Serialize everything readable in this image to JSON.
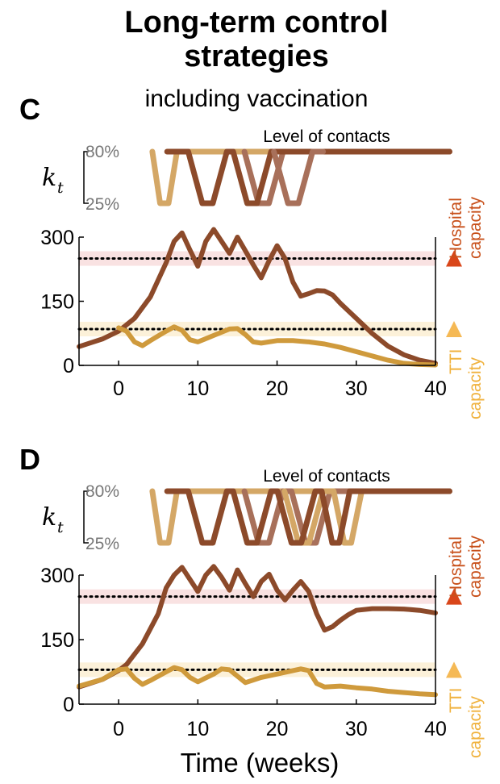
{
  "figure": {
    "title_line1": "Long-term control",
    "title_line2": "strategies",
    "subtitle": "including vaccination",
    "xlabel": "Time (weeks)"
  },
  "colors": {
    "dark": "#8c4a2a",
    "mid": "#a8705a",
    "light": "#d4a766",
    "orange": "#cf9a3c",
    "hospital": "#d9461a",
    "tti": "#f5b955",
    "hospital_band": "#f7d6d6",
    "tti_band": "#fbedd0"
  },
  "chart_data": [
    {
      "type": "line",
      "panel": "C",
      "contacts_title": "Level of contacts",
      "kt_label": "k",
      "kt_sub": "t",
      "kt_ticks": [
        "80%",
        "25%"
      ],
      "kt_range": [
        0.25,
        0.8
      ],
      "kt_series": [
        {
          "name": "light",
          "color": "light",
          "points": [
            [
              -0.3,
              0.8
            ],
            [
              0.8,
              0.25
            ],
            [
              2.0,
              0.25
            ],
            [
              3.2,
              0.8
            ],
            [
              42,
              0.8
            ]
          ]
        },
        {
          "name": "mid",
          "color": "mid",
          "points": [
            [
              12.8,
              0.8
            ],
            [
              14.8,
              0.25
            ],
            [
              16.3,
              0.25
            ],
            [
              18.3,
              0.8
            ],
            [
              42,
              0.8
            ]
          ]
        },
        {
          "name": "dark",
          "color": "dark",
          "points": [
            [
              1.8,
              0.8
            ],
            [
              4.8,
              0.8
            ],
            [
              6.8,
              0.25
            ],
            [
              8.3,
              0.25
            ],
            [
              10.3,
              0.8
            ],
            [
              11.2,
              0.8
            ],
            [
              13.2,
              0.25
            ],
            [
              14.6,
              0.25
            ],
            [
              16.6,
              0.8
            ],
            [
              42,
              0.8
            ]
          ]
        },
        {
          "name": "mid2",
          "color": "mid",
          "points": [
            [
              17.0,
              0.8
            ],
            [
              19.0,
              0.25
            ],
            [
              20.5,
              0.25
            ],
            [
              22.5,
              0.8
            ],
            [
              24,
              0.8
            ]
          ]
        }
      ],
      "xlim": [
        -5,
        40
      ],
      "ylim": [
        0,
        300
      ],
      "x_ticks": [
        "0",
        "10",
        "20",
        "30",
        "40"
      ],
      "y_ticks": [
        "0",
        "150",
        "300"
      ],
      "hospital_capacity": 250,
      "tti_capacity": 85,
      "hospital_label": [
        "Hospital",
        "capacity"
      ],
      "tti_label": [
        "TTI",
        "capacity"
      ],
      "series": [
        {
          "name": "hospital",
          "color": "dark",
          "points": [
            [
              -5,
              44
            ],
            [
              -2,
              62
            ],
            [
              0,
              80
            ],
            [
              2,
              110
            ],
            [
              4,
              160
            ],
            [
              6,
              240
            ],
            [
              7,
              290
            ],
            [
              8,
              310
            ],
            [
              9,
              270
            ],
            [
              10,
              232
            ],
            [
              11,
              290
            ],
            [
              12,
              318
            ],
            [
              13,
              290
            ],
            [
              14,
              262
            ],
            [
              15,
              300
            ],
            [
              16,
              268
            ],
            [
              17,
              235
            ],
            [
              18,
              205
            ],
            [
              19,
              245
            ],
            [
              20,
              280
            ],
            [
              21,
              250
            ],
            [
              22,
              195
            ],
            [
              23,
              162
            ],
            [
              24,
              168
            ],
            [
              25,
              175
            ],
            [
              26,
              174
            ],
            [
              27,
              165
            ],
            [
              28,
              145
            ],
            [
              30,
              110
            ],
            [
              32,
              75
            ],
            [
              34,
              45
            ],
            [
              36,
              25
            ],
            [
              38,
              12
            ],
            [
              40,
              5
            ]
          ]
        },
        {
          "name": "tti",
          "color": "orange",
          "points": [
            [
              0,
              88
            ],
            [
              1,
              80
            ],
            [
              2,
              55
            ],
            [
              3,
              46
            ],
            [
              4,
              58
            ],
            [
              6,
              80
            ],
            [
              7,
              90
            ],
            [
              8,
              82
            ],
            [
              9,
              60
            ],
            [
              10,
              55
            ],
            [
              12,
              70
            ],
            [
              14,
              85
            ],
            [
              15,
              86
            ],
            [
              16,
              72
            ],
            [
              17,
              55
            ],
            [
              18,
              52
            ],
            [
              20,
              58
            ],
            [
              22,
              58
            ],
            [
              24,
              55
            ],
            [
              26,
              50
            ],
            [
              28,
              42
            ],
            [
              30,
              32
            ],
            [
              32,
              22
            ],
            [
              34,
              12
            ],
            [
              36,
              5
            ],
            [
              38,
              2
            ],
            [
              40,
              1
            ]
          ]
        }
      ]
    },
    {
      "type": "line",
      "panel": "D",
      "contacts_title": "Level of contacts",
      "kt_label": "k",
      "kt_sub": "t",
      "kt_ticks": [
        "80%",
        "25%"
      ],
      "kt_range": [
        0.25,
        0.8
      ],
      "kt_series": [
        {
          "name": "light",
          "color": "light",
          "points": [
            [
              -0.3,
              0.8
            ],
            [
              0.8,
              0.25
            ],
            [
              2.0,
              0.25
            ],
            [
              3.2,
              0.8
            ],
            [
              42,
              0.8
            ]
          ]
        },
        {
          "name": "mid",
          "color": "mid",
          "points": [
            [
              12.8,
              0.8
            ],
            [
              14.8,
              0.25
            ],
            [
              16.3,
              0.25
            ],
            [
              18.3,
              0.8
            ],
            [
              19.5,
              0.8
            ],
            [
              21.5,
              0.25
            ],
            [
              23.0,
              0.25
            ],
            [
              25.0,
              0.8
            ],
            [
              42,
              0.8
            ]
          ]
        },
        {
          "name": "light2",
          "color": "light",
          "points": [
            [
              18.5,
              0.8
            ],
            [
              20.5,
              0.25
            ],
            [
              22.0,
              0.25
            ],
            [
              24.0,
              0.8
            ],
            [
              25.5,
              0.8
            ],
            [
              27.0,
              0.25
            ],
            [
              28.0,
              0.25
            ],
            [
              29.5,
              0.8
            ]
          ]
        },
        {
          "name": "dark",
          "color": "dark",
          "points": [
            [
              1.8,
              0.8
            ],
            [
              4.8,
              0.8
            ],
            [
              6.8,
              0.25
            ],
            [
              8.3,
              0.25
            ],
            [
              10.3,
              0.8
            ],
            [
              11.2,
              0.8
            ],
            [
              13.2,
              0.25
            ],
            [
              14.6,
              0.25
            ],
            [
              16.6,
              0.8
            ],
            [
              17.5,
              0.8
            ],
            [
              19.5,
              0.25
            ],
            [
              20.9,
              0.25
            ],
            [
              22.9,
              0.8
            ],
            [
              23.8,
              0.8
            ],
            [
              25.3,
              0.25
            ],
            [
              26.3,
              0.25
            ],
            [
              27.8,
              0.8
            ],
            [
              42,
              0.8
            ]
          ]
        }
      ],
      "xlim": [
        -5,
        40
      ],
      "ylim": [
        0,
        300
      ],
      "x_ticks": [
        "0",
        "10",
        "20",
        "30",
        "40"
      ],
      "y_ticks": [
        "0",
        "150",
        "300"
      ],
      "hospital_capacity": 250,
      "tti_capacity": 80,
      "hospital_label": [
        "Hospital",
        "capacity"
      ],
      "tti_label": [
        "TTI",
        "capacity"
      ],
      "series": [
        {
          "name": "hospital",
          "color": "dark",
          "points": [
            [
              -5,
              40
            ],
            [
              -2,
              58
            ],
            [
              0,
              78
            ],
            [
              1,
              92
            ],
            [
              3,
              140
            ],
            [
              5,
              210
            ],
            [
              6,
              270
            ],
            [
              7,
              300
            ],
            [
              8,
              318
            ],
            [
              9,
              290
            ],
            [
              10,
              262
            ],
            [
              11,
              300
            ],
            [
              12,
              320
            ],
            [
              13,
              295
            ],
            [
              14,
              265
            ],
            [
              15,
              312
            ],
            [
              16,
              280
            ],
            [
              17,
              250
            ],
            [
              18,
              285
            ],
            [
              19,
              302
            ],
            [
              20,
              265
            ],
            [
              21,
              242
            ],
            [
              22,
              265
            ],
            [
              23,
              285
            ],
            [
              24,
              262
            ],
            [
              25,
              210
            ],
            [
              26,
              172
            ],
            [
              27,
              180
            ],
            [
              28,
              195
            ],
            [
              29,
              208
            ],
            [
              30,
              218
            ],
            [
              32,
              222
            ],
            [
              34,
              222
            ],
            [
              36,
              221
            ],
            [
              38,
              218
            ],
            [
              40,
              212
            ]
          ]
        },
        {
          "name": "tti",
          "color": "orange",
          "points": [
            [
              -5,
              42
            ],
            [
              -2,
              58
            ],
            [
              0,
              80
            ],
            [
              1,
              82
            ],
            [
              2,
              60
            ],
            [
              3,
              46
            ],
            [
              4,
              55
            ],
            [
              6,
              75
            ],
            [
              7,
              85
            ],
            [
              8,
              80
            ],
            [
              9,
              62
            ],
            [
              10,
              52
            ],
            [
              12,
              70
            ],
            [
              13,
              82
            ],
            [
              14,
              80
            ],
            [
              15,
              65
            ],
            [
              16,
              50
            ],
            [
              18,
              62
            ],
            [
              20,
              70
            ],
            [
              22,
              78
            ],
            [
              23,
              82
            ],
            [
              24,
              78
            ],
            [
              25,
              48
            ],
            [
              26,
              40
            ],
            [
              28,
              42
            ],
            [
              30,
              38
            ],
            [
              32,
              35
            ],
            [
              34,
              30
            ],
            [
              36,
              27
            ],
            [
              38,
              24
            ],
            [
              40,
              22
            ]
          ]
        }
      ]
    }
  ]
}
